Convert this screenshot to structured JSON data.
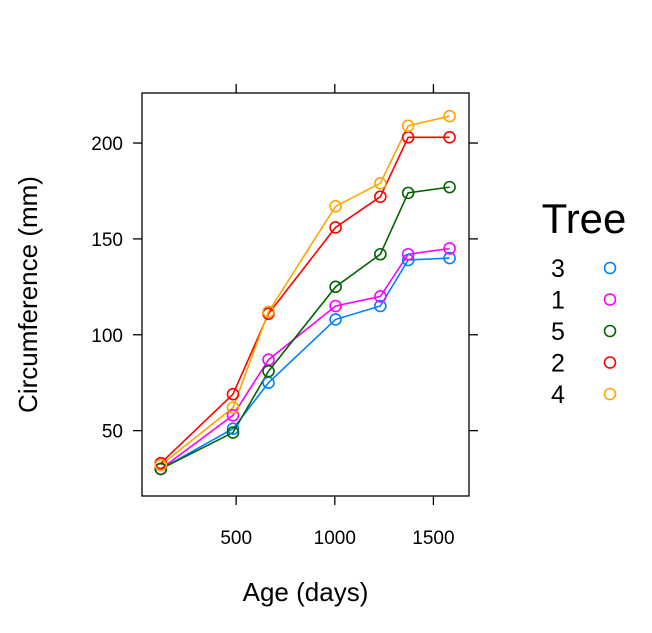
{
  "chart_data": {
    "type": "line",
    "title": "",
    "xlabel": "Age (days)",
    "ylabel": "Circumference (mm)",
    "xlim": [
      22.6,
      1680.4
    ],
    "ylim": [
      15.9,
      226.1
    ],
    "x_ticks": [
      500,
      1000,
      1500
    ],
    "y_ticks": [
      50,
      100,
      150,
      200
    ],
    "grid": false,
    "legend_position": "right",
    "legend_title": "Tree",
    "x": [
      118,
      484,
      664,
      1004,
      1231,
      1372,
      1582
    ],
    "series": [
      {
        "name": "3",
        "color": "#0080ff",
        "values": [
          30,
          51,
          75,
          108,
          115,
          139,
          140
        ]
      },
      {
        "name": "1",
        "color": "#ff00ff",
        "values": [
          30,
          58,
          87,
          115,
          120,
          142,
          145
        ]
      },
      {
        "name": "5",
        "color": "#006400",
        "values": [
          30,
          49,
          81,
          125,
          142,
          174,
          177
        ]
      },
      {
        "name": "2",
        "color": "#ff0000",
        "values": [
          33,
          69,
          111,
          156,
          172,
          203,
          203
        ]
      },
      {
        "name": "4",
        "color": "#ffa500",
        "values": [
          32,
          62,
          112,
          167,
          179,
          209,
          214
        ]
      }
    ]
  }
}
